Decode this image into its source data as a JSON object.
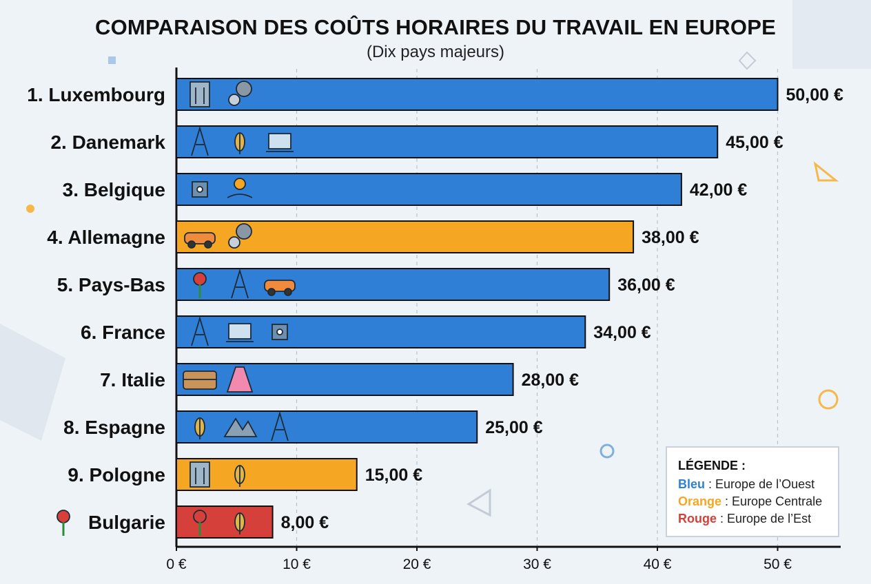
{
  "title": "COMPARAISON DES COÛTS HORAIRES DU TRAVAIL EN EUROPE",
  "subtitle": "(Dix pays majeurs)",
  "legend": {
    "title": "LÉGENDE :",
    "items": [
      {
        "key": "Bleu",
        "sep": " : ",
        "text": "Europe de l’Ouest",
        "color": "#2f7fd6"
      },
      {
        "key": "Orange",
        "sep": " : ",
        "text": "Europe Centrale",
        "color": "#f5a623"
      },
      {
        "key": "Rouge",
        "sep": " : ",
        "text": "Europe de l’Est",
        "color": "#d6403a"
      }
    ]
  },
  "chart_data": {
    "type": "bar",
    "orientation": "horizontal",
    "title": "COMPARAISON DES COÛTS HORAIRES DU TRAVAIL EN EUROPE",
    "subtitle": "(Dix pays majeurs)",
    "xlim": [
      0,
      55
    ],
    "xticks": [
      0,
      10,
      20,
      30,
      40,
      50
    ],
    "xtick_labels": [
      "0 €",
      "10 €",
      "20 €",
      "30 €",
      "40 €",
      "50 €"
    ],
    "grid": "vertical dashed",
    "legend_position": "bottom-right",
    "categories": [
      "1. Luxembourg",
      "2. Danemark",
      "3. Belgique",
      "4. Allemagne",
      "5. Pays-Bas",
      "6. France",
      "7. Italie",
      "8. Espagne",
      "9. Pologne",
      "Bulgarie"
    ],
    "values": [
      50,
      45,
      42,
      38,
      36,
      34,
      28,
      25,
      15,
      8
    ],
    "value_labels": [
      "50,00 €",
      "45,00 €",
      "42,00 €",
      "38,00 €",
      "36,00 €",
      "34,00 €",
      "28,00 €",
      "25,00 €",
      "15,00 €",
      "8,00 €"
    ],
    "groups": [
      "Bleu",
      "Bleu",
      "Bleu",
      "Orange",
      "Bleu",
      "Bleu",
      "Bleu",
      "Bleu",
      "Orange",
      "Rouge"
    ],
    "colors": {
      "Bleu": "#2f7fd6",
      "Orange": "#f5a623",
      "Rouge": "#d6403a"
    },
    "icons": [
      [
        "building-icon",
        "gears-icon"
      ],
      [
        "wind-turbine-icon",
        "leaf-icon",
        "design-icon"
      ],
      [
        "atomium-icon",
        "award-hand-icon"
      ],
      [
        "car-icon",
        "gears-icon"
      ],
      [
        "tulip-icon",
        "windmill-icon",
        "cargo-ship-icon"
      ],
      [
        "eiffel-tower-icon",
        "laptop-icon",
        "chip-icon"
      ],
      [
        "colosseum-icon",
        "dress-icon"
      ],
      [
        "palm-tree-icon",
        "mountains-icon",
        "crane-icon"
      ],
      [
        "factory-icon",
        "wheat-icon"
      ],
      [
        "rose-icon",
        "wheat-field-icon"
      ]
    ],
    "row_prefix_icons": [
      "",
      "",
      "",
      "",
      "",
      "",
      "",
      "",
      "",
      "rose-icon"
    ]
  }
}
